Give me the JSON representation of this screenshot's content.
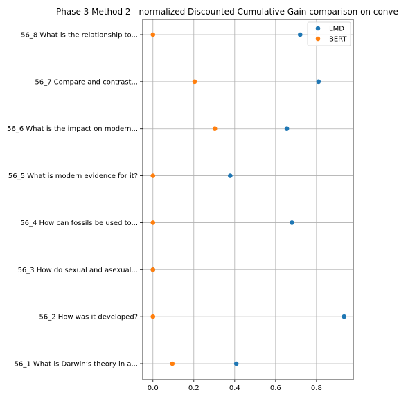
{
  "chart_data": {
    "type": "scatter",
    "title": "Phase 3 Method 2 - normalized Discounted Cumulative Gain comparison on conve",
    "xlabel": "",
    "ylabel": "",
    "xlim": [
      -0.05,
      0.98
    ],
    "xticks": [
      "0.0",
      "0.2",
      "0.4",
      "0.6",
      "0.8"
    ],
    "xtick_values": [
      0.0,
      0.2,
      0.4,
      0.6,
      0.8
    ],
    "grid": true,
    "legend_position": "top-right",
    "categories": [
      "56_8 What is the relationship to...",
      "56_7 Compare and contrast...",
      "56_6 What is the impact on modern...",
      "56_5 What is modern evidence for it?",
      "56_4 How can fossils be used to...",
      "56_3 How do sexual and asexual...",
      "56_2 How was it developed?",
      "56_1 What is Darwin’s theory in a..."
    ],
    "series": [
      {
        "name": "LMD",
        "color": "#1f77b4",
        "values": [
          0.72,
          0.81,
          0.655,
          0.378,
          0.68,
          0.0,
          0.935,
          0.408
        ]
      },
      {
        "name": "BERT",
        "color": "#ff7f0e",
        "values": [
          0.0,
          0.204,
          0.303,
          0.0,
          0.0,
          0.0,
          0.0,
          0.095
        ]
      }
    ]
  }
}
